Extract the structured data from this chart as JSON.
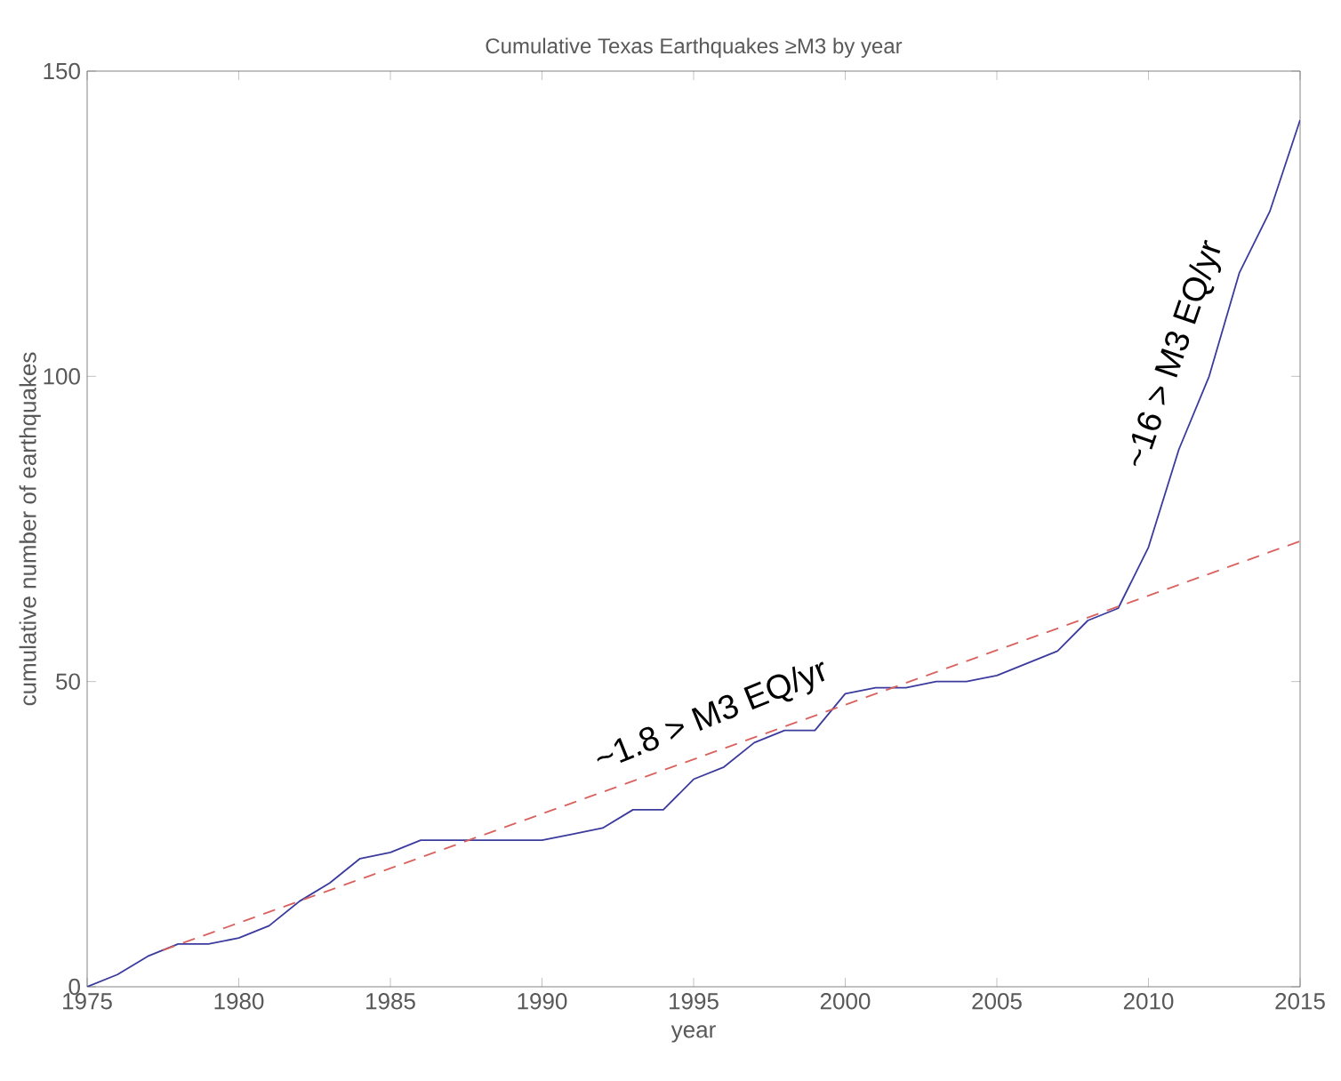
{
  "chart_data": {
    "type": "line",
    "title": "Cumulative Texas Earthquakes ≥M3 by year",
    "xlabel": "year",
    "ylabel": "cumulative number of earthquakes",
    "x": [
      1975,
      1976,
      1977,
      1978,
      1979,
      1980,
      1981,
      1982,
      1983,
      1984,
      1985,
      1986,
      1987,
      1988,
      1989,
      1990,
      1991,
      1992,
      1993,
      1994,
      1995,
      1996,
      1997,
      1998,
      1999,
      2000,
      2001,
      2002,
      2003,
      2004,
      2005,
      2006,
      2007,
      2008,
      2009,
      2010,
      2011,
      2012,
      2013,
      2014,
      2015
    ],
    "series": [
      {
        "color": "#3b3b9e",
        "line_style": "solid",
        "values": [
          0,
          2,
          5,
          7,
          7,
          8,
          10,
          14,
          17,
          21,
          22,
          24,
          24,
          24,
          24,
          24,
          25,
          26,
          29,
          29,
          34,
          36,
          40,
          42,
          42,
          48,
          49,
          49,
          50,
          50,
          51,
          53,
          55,
          60,
          62,
          72,
          88,
          100,
          117,
          127,
          142
        ]
      },
      {
        "type": "line",
        "color": "#d9625e",
        "line_style": "dashed",
        "x": [
          1977.5,
          2015
        ],
        "values": [
          6,
          73
        ]
      }
    ],
    "xlim": [
      1975,
      2015
    ],
    "ylim": [
      0,
      150
    ],
    "xticks": [
      1975,
      1980,
      1985,
      1990,
      1995,
      2000,
      2005,
      2010,
      2015
    ],
    "yticks": [
      0,
      50,
      100,
      150
    ],
    "grid": false,
    "annotations": [
      "~1.8 > M3 EQ/yr",
      "~16 > M3 EQ/yr"
    ]
  }
}
